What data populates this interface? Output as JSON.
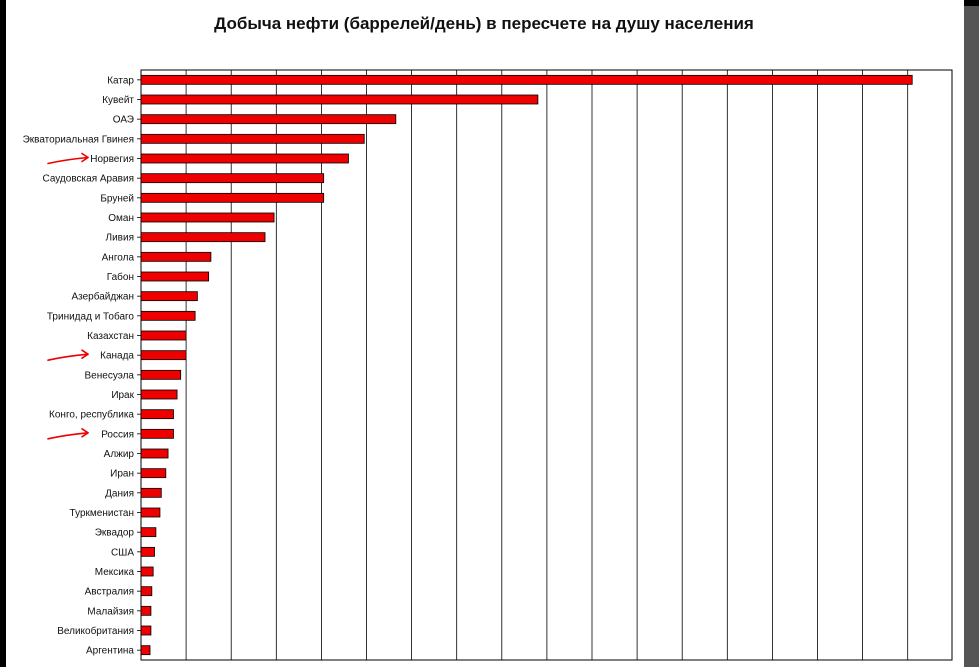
{
  "chart_data": {
    "type": "bar",
    "orientation": "horizontal",
    "title": "Добыча нефти (баррелей/день) в пересчете на душу населения",
    "xlabel": "",
    "ylabel": "",
    "xlim": [
      0,
      18
    ],
    "grid": true,
    "bar_color": "#ee0000",
    "categories": [
      "Катар",
      "Кувейт",
      "ОАЭ",
      "Экваториальная Гвинея",
      "Норвегия",
      "Саудовская Аравия",
      "Бруней",
      "Оман",
      "Ливия",
      "Ангола",
      "Габон",
      "Азербайджан",
      "Тринидад и Тобаго",
      "Казахстан",
      "Канада",
      "Венесуэла",
      "Ирак",
      "Конго, республика",
      "Россия",
      "Алжир",
      "Иран",
      "Дания",
      "Туркменистан",
      "Эквадор",
      "США",
      "Мексика",
      "Австралия",
      "Малайзия",
      "Великобритания",
      "Аргентина"
    ],
    "values": [
      17.1,
      8.8,
      5.65,
      4.95,
      4.6,
      4.05,
      4.05,
      2.95,
      2.75,
      1.55,
      1.5,
      1.25,
      1.2,
      1.0,
      1.0,
      0.88,
      0.8,
      0.72,
      0.72,
      0.6,
      0.55,
      0.45,
      0.42,
      0.33,
      0.3,
      0.27,
      0.24,
      0.22,
      0.22,
      0.2
    ],
    "annotations": {
      "arrow_color": "#ee0000",
      "arrows": [
        {
          "category": "Норвегия",
          "type": "hand-drawn-arrow"
        },
        {
          "category": "Канада",
          "type": "hand-drawn-arrow"
        },
        {
          "category": "Россия",
          "type": "hand-drawn-arrow"
        }
      ]
    }
  }
}
